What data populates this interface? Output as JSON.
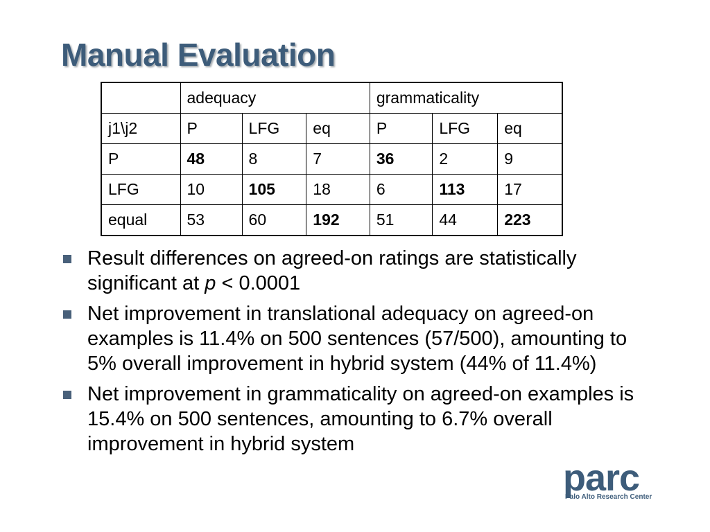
{
  "title": "Manual Evaluation",
  "table": {
    "header": [
      "",
      "adequacy",
      "grammaticality"
    ],
    "subheader": [
      "j1\\j2",
      "P",
      "LFG",
      "eq",
      "P",
      "LFG",
      "eq"
    ],
    "rows": [
      [
        "P",
        "48",
        "8",
        "7",
        "36",
        "2",
        "9"
      ],
      [
        "LFG",
        "10",
        "105",
        "18",
        "6",
        "113",
        "17"
      ],
      [
        "equal",
        "53",
        "60",
        "192",
        "51",
        "44",
        "223"
      ]
    ]
  },
  "bullets": {
    "b1_part1": "Result differences on agreed-on ratings are statistically significant at ",
    "b1_var": "p",
    "b1_part2": " < 0.0001",
    "b2": "Net improvement in translational adequacy on agreed-on examples is 11.4% on 500 sentences (57/500), amounting to 5% overall improvement in hybrid system (44% of 11.4%)",
    "b3": "Net improvement in grammaticality on agreed-on examples is 15.4% on 500 sentences, amounting to 6.7% overall improvement in hybrid system"
  },
  "logo": {
    "word": "parc",
    "subtitle": "Palo Alto Research Center"
  },
  "colors": {
    "title": "#3d5c7a",
    "bullet": "#48607a"
  }
}
